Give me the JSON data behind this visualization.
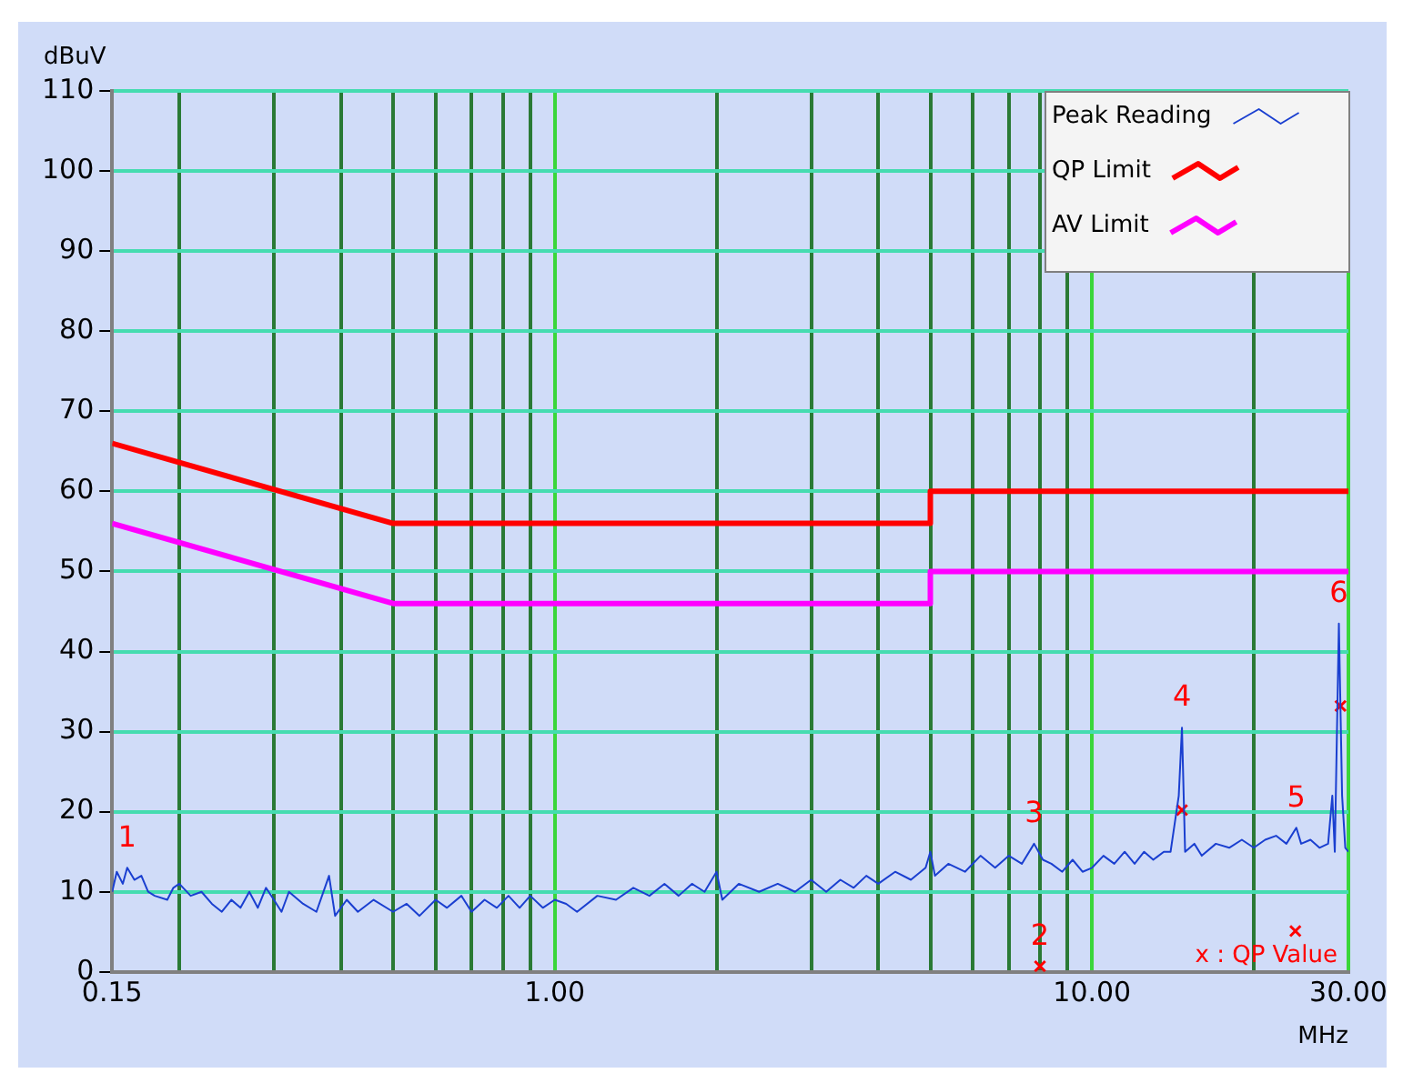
{
  "chart_data": {
    "type": "line",
    "xlabel": "MHz",
    "ylabel": "dBuV",
    "log": "x",
    "grid": true,
    "legend": "top right",
    "marker": "none",
    "line_style": "solid",
    "xlim": [
      0.15,
      30
    ],
    "ylim": [
      0,
      110
    ],
    "xticks": [
      {
        "value": 0.15,
        "label": "0.15"
      },
      {
        "value": 0.2,
        "label": null
      },
      {
        "value": 0.3,
        "label": null
      },
      {
        "value": 0.4,
        "label": null
      },
      {
        "value": 0.5,
        "label": null
      },
      {
        "value": 0.6,
        "label": null
      },
      {
        "value": 0.7,
        "label": null
      },
      {
        "value": 0.8,
        "label": null
      },
      {
        "value": 0.9,
        "label": null
      },
      {
        "value": 1,
        "label": "1.00"
      },
      {
        "value": 2,
        "label": null
      },
      {
        "value": 3,
        "label": null
      },
      {
        "value": 4,
        "label": null
      },
      {
        "value": 5,
        "label": null
      },
      {
        "value": 6,
        "label": null
      },
      {
        "value": 7,
        "label": null
      },
      {
        "value": 8,
        "label": null
      },
      {
        "value": 9,
        "label": null
      },
      {
        "value": 10,
        "label": "10.00"
      },
      {
        "value": 20,
        "label": null
      },
      {
        "value": 30,
        "label": "30.00"
      }
    ],
    "yticks": [
      0,
      10,
      20,
      30,
      40,
      50,
      60,
      70,
      80,
      90,
      100,
      110
    ],
    "series": [
      {
        "name": "Peak Reading",
        "color": "#1a3fd0",
        "x": [
          0.15,
          0.153,
          0.157,
          0.16,
          0.165,
          0.17,
          0.175,
          0.18,
          0.19,
          0.195,
          0.2,
          0.21,
          0.22,
          0.23,
          0.24,
          0.25,
          0.26,
          0.27,
          0.28,
          0.29,
          0.3,
          0.31,
          0.32,
          0.34,
          0.36,
          0.38,
          0.39,
          0.41,
          0.43,
          0.46,
          0.5,
          0.53,
          0.56,
          0.6,
          0.63,
          0.67,
          0.7,
          0.74,
          0.78,
          0.82,
          0.86,
          0.9,
          0.95,
          1.0,
          1.05,
          1.1,
          1.2,
          1.3,
          1.4,
          1.5,
          1.6,
          1.7,
          1.8,
          1.9,
          2.0,
          2.05,
          2.2,
          2.4,
          2.6,
          2.8,
          3.0,
          3.2,
          3.4,
          3.6,
          3.8,
          4.0,
          4.3,
          4.6,
          4.9,
          5.0,
          5.1,
          5.4,
          5.8,
          6.2,
          6.6,
          7.0,
          7.4,
          7.8,
          8.1,
          8.4,
          8.8,
          9.2,
          9.6,
          10,
          10.5,
          11,
          11.5,
          12,
          12.5,
          13,
          13.6,
          14.0,
          14.5,
          14.7,
          14.9,
          15.5,
          16,
          17,
          18,
          19,
          20,
          21,
          22,
          23,
          24,
          24.5,
          25.5,
          26.5,
          27.5,
          28,
          28.3,
          28.8,
          29.2,
          29.6,
          30
        ],
        "values": [
          10,
          12.5,
          11,
          13,
          11.5,
          12,
          10,
          9.5,
          9,
          10.5,
          11,
          9.5,
          10,
          8.5,
          7.5,
          9,
          8,
          10,
          8,
          10.5,
          9,
          7.5,
          10,
          8.5,
          7.5,
          12,
          7,
          9,
          7.5,
          9,
          7.5,
          8.5,
          7,
          9,
          8,
          9.5,
          7.5,
          9,
          8,
          9.5,
          8,
          9.5,
          8,
          9,
          8.5,
          7.5,
          9.5,
          9,
          10.5,
          9.5,
          11,
          9.5,
          11,
          10,
          12.5,
          9,
          11,
          10,
          11,
          10,
          11.5,
          10,
          11.5,
          10.5,
          12,
          11,
          12.5,
          11.5,
          13,
          15,
          12,
          13.5,
          12.5,
          14.5,
          13,
          14.5,
          13.5,
          16,
          14,
          13.5,
          12.5,
          14,
          12.5,
          13,
          14.5,
          13.5,
          15,
          13.5,
          15,
          14,
          15,
          15,
          22,
          30.5,
          15,
          16,
          14.5,
          16,
          15.5,
          16.5,
          15.5,
          16.5,
          17,
          16,
          18,
          16,
          16.5,
          15.5,
          16,
          22,
          15,
          43.5,
          22,
          15.5,
          15
        ]
      },
      {
        "name": "QP Limit",
        "color": "#ff0000",
        "x": [
          0.15,
          0.5,
          5,
          5,
          30
        ],
        "values": [
          66,
          56,
          56,
          60,
          60
        ]
      },
      {
        "name": "AV Limit",
        "color": "#ff00ff",
        "x": [
          0.15,
          0.5,
          5,
          5,
          30
        ],
        "values": [
          56,
          46,
          46,
          50,
          50
        ]
      },
      {
        "color": "#ff0000",
        "type": "scatter",
        "marker": "cross",
        "x": [
          8.0,
          14.7,
          23.9,
          29.0
        ],
        "values": [
          0.7,
          20.2,
          5.1,
          33.2
        ]
      }
    ],
    "annotations": [
      {
        "text": "1",
        "x": 0.16,
        "y": 13
      },
      {
        "text": "2",
        "x": 8.0,
        "y": 0.7
      },
      {
        "text": "3",
        "x": 7.8,
        "y": 16
      },
      {
        "text": "4",
        "x": 14.7,
        "y": 30.5
      },
      {
        "text": "5",
        "x": 24,
        "y": 18
      },
      {
        "text": "6",
        "x": 28.8,
        "y": 43.5
      },
      "x : QP Value"
    ]
  }
}
